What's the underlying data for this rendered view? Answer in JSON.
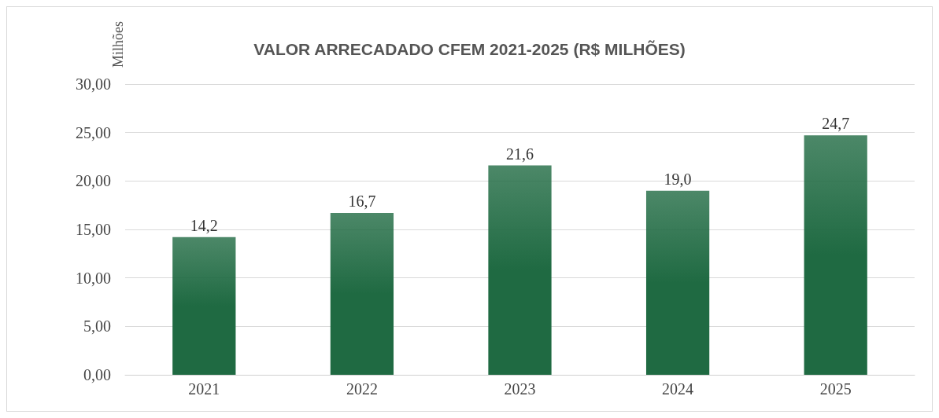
{
  "chart_data": {
    "type": "bar",
    "title": "VALOR ARRECADADO CFEM 2021-2025 (R$ MILHÕES)",
    "ylabel": "Milhões",
    "categories": [
      "2021",
      "2022",
      "2023",
      "2024",
      "2025"
    ],
    "values": [
      14.2,
      16.7,
      21.6,
      19.0,
      24.7
    ],
    "color": "#1f6a42",
    "value_labels": [
      "14,2",
      "16,7",
      "21,6",
      "19,0",
      "24,7"
    ],
    "ylim": [
      0,
      30
    ],
    "yticks": [
      {
        "value": 0,
        "label": "0,00"
      },
      {
        "value": 5,
        "label": "5,00"
      },
      {
        "value": 10,
        "label": "10,00"
      },
      {
        "value": 15,
        "label": "15,00"
      },
      {
        "value": 20,
        "label": "20,00"
      },
      {
        "value": 25,
        "label": "25,00"
      },
      {
        "value": 30,
        "label": "30,00"
      }
    ],
    "grid": "y"
  }
}
